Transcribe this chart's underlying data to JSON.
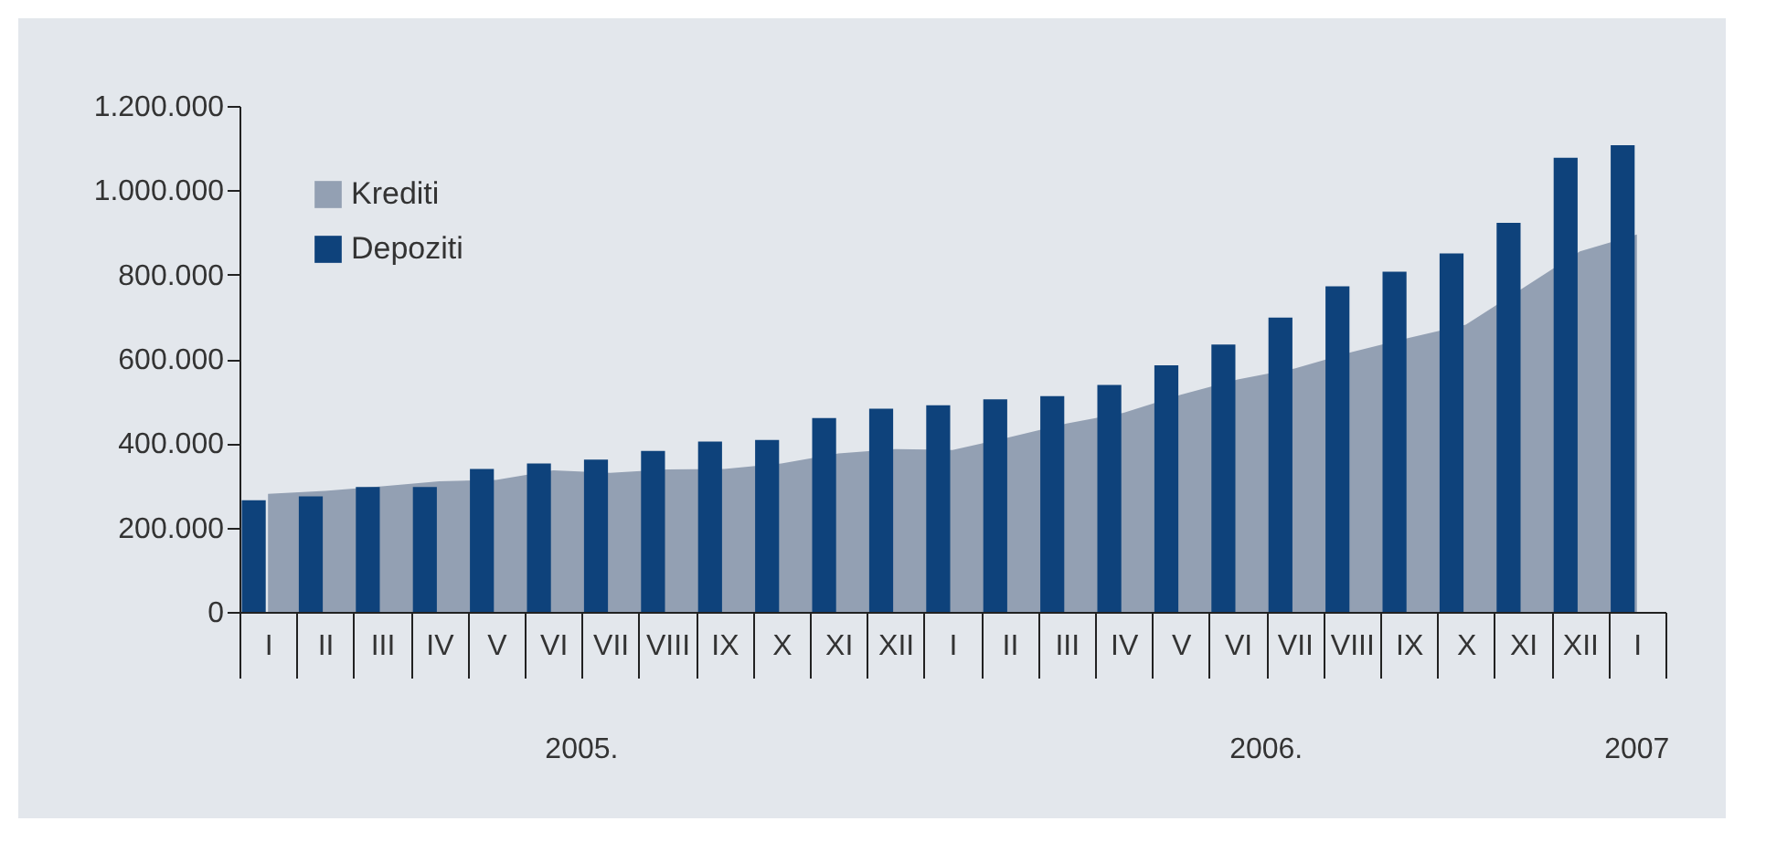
{
  "chart_data": {
    "type": "bar",
    "categories": [
      "I",
      "II",
      "III",
      "IV",
      "V",
      "VI",
      "VII",
      "VIII",
      "IX",
      "X",
      "XI",
      "XII",
      "I",
      "II",
      "III",
      "IV",
      "V",
      "VI",
      "VII",
      "VIII",
      "IX",
      "X",
      "XI",
      "XII",
      "I"
    ],
    "series": [
      {
        "name": "Krediti",
        "type": "area",
        "color": "#93a0b3",
        "values": [
          280000,
          287000,
          298000,
          310000,
          313000,
          336000,
          330000,
          338000,
          339000,
          352000,
          376000,
          386000,
          384000,
          414000,
          447000,
          472000,
          515000,
          551000,
          577000,
          616000,
          650000,
          681000,
          768000,
          855000,
          895000
        ]
      },
      {
        "name": "Depoziti",
        "color": "#0e427b",
        "values": [
          265000,
          274000,
          296000,
          296000,
          339000,
          352000,
          361000,
          382000,
          404000,
          408000,
          460000,
          482000,
          490000,
          504000,
          512000,
          538000,
          585000,
          634000,
          698000,
          772000,
          807000,
          850000,
          923000,
          1077000,
          1107000
        ]
      }
    ],
    "ylim": [
      0,
      1200000
    ],
    "yticks": [
      {
        "value": 0,
        "label": "0"
      },
      {
        "value": 200000,
        "label": "200.000"
      },
      {
        "value": 400000,
        "label": "400.000"
      },
      {
        "value": 600000,
        "label": "600.000"
      },
      {
        "value": 800000,
        "label": "800.000"
      },
      {
        "value": 1000000,
        "label": "1.000.000"
      },
      {
        "value": 1200000,
        "label": "1.200.000"
      }
    ],
    "annotations": [
      "2005.",
      "2006.",
      "2007"
    ],
    "legend": "top left",
    "grid": false
  }
}
